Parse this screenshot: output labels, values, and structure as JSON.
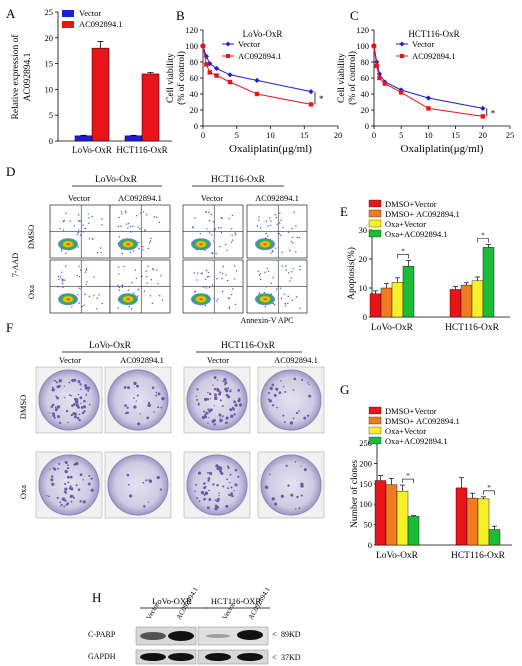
{
  "panel_letters": {
    "a": "A",
    "b": "B",
    "c": "C",
    "d": "D",
    "e": "E",
    "f": "F",
    "g": "G",
    "h": "H"
  },
  "colors": {
    "red": "#e8141a",
    "blue": "#1d1ddd",
    "orange": "#f07b22",
    "yellow": "#f6f02a",
    "green": "#1cbd36",
    "plate_purple": "#6c5aa8"
  },
  "chart_data": [
    {
      "id": "A",
      "type": "bar",
      "categories": [
        "LoVo-OxR",
        "HCT116-OxR"
      ],
      "series": [
        {
          "name": "Vector",
          "values": [
            1,
            1
          ],
          "errors": [
            0.1,
            0.1
          ]
        },
        {
          "name": "AC092894.1",
          "values": [
            18,
            13
          ],
          "errors": [
            1.3,
            0.3
          ]
        }
      ],
      "ylabel_line1": "Relative expression of",
      "ylabel_line2": "AC092894.1",
      "ylim": [
        0,
        25
      ],
      "yticks": [
        0,
        5,
        10,
        15,
        20,
        25
      ]
    },
    {
      "id": "B",
      "type": "line",
      "title": "LoVo-OxR",
      "series": [
        {
          "name": "Vector",
          "x": [
            0,
            0.5,
            1,
            2,
            4,
            8,
            16
          ],
          "y": [
            100,
            87,
            78,
            72,
            64,
            57,
            43
          ]
        },
        {
          "name": "AC092894.1",
          "x": [
            0,
            0.5,
            1,
            2,
            4,
            8,
            16
          ],
          "y": [
            100,
            77,
            67,
            63,
            55,
            40,
            27
          ]
        }
      ],
      "xlabel": "Oxaliplatin(μg/ml)",
      "ylabel_line1": "Cell viability",
      "ylabel_line2": "(% of control)",
      "xlim": [
        0,
        20
      ],
      "xticks": [
        0,
        5,
        10,
        15,
        20
      ],
      "ylim": [
        0,
        120
      ],
      "yticks": [
        0,
        20,
        40,
        60,
        80,
        100,
        120
      ],
      "annotation": "*"
    },
    {
      "id": "C",
      "type": "line",
      "title": "HCT116-OxR",
      "series": [
        {
          "name": "Vector",
          "x": [
            0,
            0.5,
            1,
            2,
            5,
            10,
            20
          ],
          "y": [
            100,
            80,
            65,
            55,
            45,
            35,
            22
          ]
        },
        {
          "name": "AC092894.1",
          "x": [
            0,
            0.5,
            1,
            2,
            5,
            10,
            20
          ],
          "y": [
            100,
            75,
            60,
            53,
            42,
            22,
            12
          ]
        }
      ],
      "xlabel": "Oxaliplatin(μg/ml)",
      "ylabel_line1": "Cell viability",
      "ylabel_line2": "(% of control)",
      "xlim": [
        0,
        25
      ],
      "xticks": [
        0,
        5,
        10,
        15,
        20,
        25
      ],
      "ylim": [
        0,
        120
      ],
      "yticks": [
        0,
        20,
        40,
        60,
        80,
        100,
        120
      ],
      "annotation": "*"
    },
    {
      "id": "E",
      "type": "bar",
      "categories": [
        "LoVo-OxR",
        "HCT116-OxR"
      ],
      "series": [
        {
          "name": "DMSO+Vector",
          "values": [
            8,
            9.5
          ],
          "errors": [
            1,
            1
          ]
        },
        {
          "name": "DMSO+ AC092894.1",
          "values": [
            10,
            11
          ],
          "errors": [
            1.5,
            0.8
          ]
        },
        {
          "name": "Oxa+Vector",
          "values": [
            12,
            12.5
          ],
          "errors": [
            1.5,
            1.3
          ]
        },
        {
          "name": "Oxa+AC092894.1",
          "values": [
            17.5,
            24
          ],
          "errors": [
            2,
            1
          ]
        }
      ],
      "ylabel": "Apoptosis(%)",
      "ylim": [
        0,
        30
      ],
      "yticks": [
        0,
        10,
        20,
        30
      ],
      "annotation": "*"
    },
    {
      "id": "G",
      "type": "bar",
      "categories": [
        "LoVo-OxR",
        "HCT116-OxR"
      ],
      "series": [
        {
          "name": "DMSO+Vector",
          "values": [
            158,
            140
          ],
          "errors": [
            12,
            25
          ]
        },
        {
          "name": "DMSO+ AC092894.1",
          "values": [
            148,
            115
          ],
          "errors": [
            15,
            12
          ]
        },
        {
          "name": "Oxa+Vector",
          "values": [
            132,
            113
          ],
          "errors": [
            15,
            5
          ]
        },
        {
          "name": "Oxa+AC092894.1",
          "values": [
            70,
            38
          ],
          "errors": [
            2,
            8
          ]
        }
      ],
      "ylabel": "Number of clones",
      "ylim": [
        0,
        250
      ],
      "yticks": [
        0,
        50,
        100,
        150,
        200,
        250
      ],
      "annotation": "*"
    }
  ],
  "panel_d": {
    "groups": [
      "LoVo-OxR",
      "HCT116-OxR"
    ],
    "columns": [
      "Vector",
      "AC092894.1",
      "Vector",
      "AC092894.1"
    ],
    "rows": [
      "DMSO",
      "Oxa"
    ],
    "yaxis": "7-AAD",
    "xaxis": "Annexin-V APC"
  },
  "panel_f": {
    "groups": [
      "LoVo-OxR",
      "HCT116-OxR"
    ],
    "columns": [
      "Vector",
      "AC092894.1",
      "Vector",
      "AC092894.1"
    ],
    "rows": [
      "DMSO",
      "Oxa"
    ]
  },
  "panel_h": {
    "groups": [
      "LoVo-OXR",
      "HCT116-OXR"
    ],
    "lanes": [
      "Vector",
      "AC092894.1",
      "Vector",
      "AC092894.1"
    ],
    "proteins": [
      "C-PARP",
      "GAPDH"
    ],
    "sizes": [
      "89KD",
      "37KD"
    ]
  }
}
